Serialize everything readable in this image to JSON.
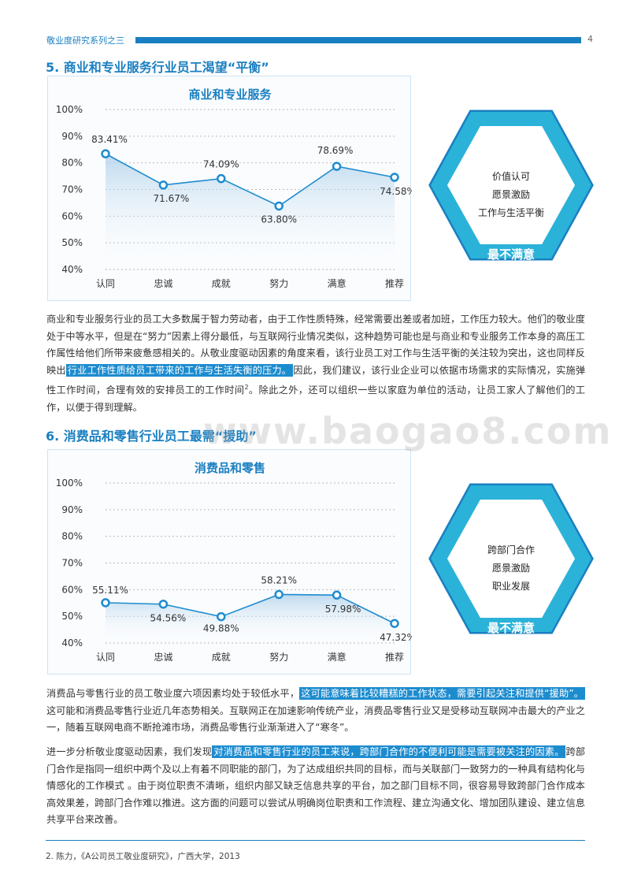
{
  "header": {
    "series": "敬业度研究系列之三",
    "page": "4"
  },
  "section5": {
    "title": "5. 商业和专业服务行业员工渴望“平衡”",
    "diagram": {
      "top": "影响最大",
      "items": [
        "价值认可",
        "愿景激励",
        "工作与生活平衡"
      ],
      "bottom": "最不满意"
    },
    "para_parts": [
      "商业和专业服务行业的员工大多数属于智力劳动者，由于工作性质特殊，经常需要出差或者加班，工作压力较大。他们的敬业度处于中等水平，但是在“努力”因素上得分最低，与互联网行业情况类似，这种趋势可能也是与商业和专业服务工作本身的高压工作属性给他们所带来疲惫感相关的。从敬业度驱动因素的角度来看，该行业员工对工作与生活平衡的关注较为突出，这也同样反映出",
      "行业工作性质给员工带来的工作与生活失衡的压力。",
      "因此，我们建议，该行业企业可以依据市场需求的实际情况，实施弹性工作时间，合理有效的安排员工的工作时间",
      "2",
      "。除此之外，还可以组织一些以家庭为单位的活动，让员工家人了解他们的工作，以便于得到理解。"
    ]
  },
  "section6": {
    "title": "6. 消费品和零售行业员工最需“援助”",
    "diagram": {
      "top": "影响最大",
      "items": [
        "跨部门合作",
        "愿景激励",
        "职业发展"
      ],
      "bottom": "最不满意"
    },
    "para1_parts": [
      "消费品与零售行业的员工敬业度六项因素均处于较低水平，",
      "这可能意味着比较糟糕的工作状态，需要引起关注和提供“援助”。",
      "这可能和消费品零售行业近几年态势相关。互联网正在加速影响传统产业，消费品零售行业又是受移动互联网冲击最大的产业之一，随着互联网电商不断抢滩市场，消费品零售行业渐渐进入了“寒冬”。"
    ],
    "para2_parts": [
      "进一步分析敬业度驱动因素，我们发现",
      "对消费品和零售行业的员工来说，跨部门合作的不便利可能是需要被关注的因素。",
      "跨部门合作是指同一组织中两个及以上有着不同职能的部门，为了达成组织共同的目标，而与关联部门一致努力的一种具有结构化与情感化的工作模式 。由于岗位职责不清晰，组织内部又缺乏信息共享的平台，加之部门目标不同，很容易导致跨部门合作成本高效果差，跨部门合作难以推进。这方面的问题可以尝试从明确岗位职责和工作流程、建立沟通文化、增加团队建设、建立信息共享平台来改善。"
    ]
  },
  "watermark": "www.baogao8.com",
  "footnote": "2. 陈力，《A公司员工敬业度研究》，广西大学，2013",
  "colors": {
    "accent": "#1a7fc1",
    "line": "#1d8ccf",
    "hex_light": "#2bb2d9",
    "hex_dark": "#1a7fc1"
  },
  "chart_data": [
    {
      "type": "line",
      "title": "商业和专业服务",
      "categories": [
        "认同",
        "忠诚",
        "成就",
        "努力",
        "满意",
        "推荐"
      ],
      "values": [
        83.41,
        71.67,
        74.09,
        63.8,
        78.69,
        74.58
      ],
      "labels": [
        "83.41%",
        "71.67%",
        "74.09%",
        "63.80%",
        "78.69%",
        "74.58%"
      ],
      "yticks": [
        "40%",
        "50%",
        "60%",
        "70%",
        "80%",
        "90%",
        "100%"
      ],
      "ylim": [
        40,
        100
      ],
      "grid": true
    },
    {
      "type": "line",
      "title": "消费品和零售",
      "categories": [
        "认同",
        "忠诚",
        "成就",
        "努力",
        "满意",
        "推荐"
      ],
      "values": [
        55.11,
        54.56,
        49.88,
        58.21,
        57.98,
        47.32
      ],
      "labels": [
        "55.11%",
        "54.56%",
        "49.88%",
        "58.21%",
        "57.98%",
        "47.32%"
      ],
      "yticks": [
        "40%",
        "50%",
        "60%",
        "70%",
        "80%",
        "90%",
        "100%"
      ],
      "ylim": [
        40,
        100
      ],
      "grid": true
    }
  ]
}
